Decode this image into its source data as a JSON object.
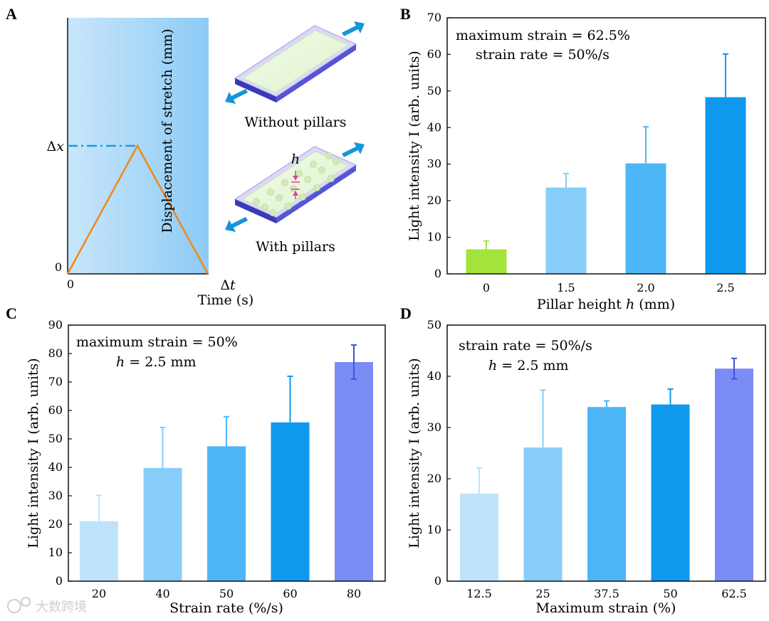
{
  "panels": {
    "a": {
      "letter": "A",
      "ylabel": "Displacement of stretch (mm)",
      "xlabel": "Time (s)",
      "y_zero": "0",
      "x_zero": "0",
      "dx_var": "x",
      "dt_var": "t",
      "h_label": "h",
      "without_label": "Without pillars",
      "with_label": "With pillars"
    }
  },
  "watermark": "大数跨境",
  "chart_data": [
    {
      "id": "B",
      "type": "bar",
      "xlabel_parts": [
        "Pillar height ",
        "h",
        " (mm)"
      ],
      "ylabel": "Light intensity I (arb. units)",
      "ylim": [
        0,
        70
      ],
      "yticks": [
        0,
        10,
        20,
        30,
        40,
        50,
        60,
        70
      ],
      "categories": [
        "0",
        "1.5",
        "2.0",
        "2.5"
      ],
      "values": [
        6.7,
        23.6,
        30.2,
        48.3
      ],
      "errors": [
        2.3,
        3.8,
        10.0,
        11.8
      ],
      "colors": [
        "#a3e33c",
        "#86cdfa",
        "#4db6f6",
        "#0f99ee"
      ],
      "error_colors": [
        "#a3e33c",
        "#86cdfa",
        "#4db6f6",
        "#0f99ee"
      ],
      "annotations": [
        {
          "parts": [
            "maximum strain = 62.5%"
          ]
        },
        {
          "parts": [
            "strain rate = 50%/s"
          ]
        }
      ]
    },
    {
      "id": "C",
      "type": "bar",
      "xlabel_parts": [
        "Strain rate (%/s)"
      ],
      "ylabel": "Light intensity I (arb. units)",
      "ylim": [
        0,
        90
      ],
      "yticks": [
        0,
        10,
        20,
        30,
        40,
        50,
        60,
        70,
        80,
        90
      ],
      "categories": [
        "20",
        "40",
        "50",
        "60",
        "80"
      ],
      "values": [
        21.1,
        39.8,
        47.4,
        55.8,
        77.0
      ],
      "errors": [
        9.1,
        14.2,
        10.4,
        16.2,
        6.0
      ],
      "colors": [
        "#bfe3fb",
        "#86cdfa",
        "#4db6f6",
        "#0f99ee",
        "#7b8cf7"
      ],
      "error_colors": [
        "#bfe3fb",
        "#86cdfa",
        "#4db6f6",
        "#0f99ee",
        "#3f54d8"
      ],
      "annotations": [
        {
          "parts": [
            "maximum strain = 50%"
          ]
        },
        {
          "parts": [
            "h",
            " = 2.5 mm"
          ]
        }
      ]
    },
    {
      "id": "D",
      "type": "bar",
      "xlabel_parts": [
        "Maximum strain (%)"
      ],
      "ylabel": "Light intensity I (arb. units)",
      "ylim": [
        0,
        50
      ],
      "yticks": [
        0,
        10,
        20,
        30,
        40,
        50
      ],
      "categories": [
        "12.5",
        "25",
        "37.5",
        "50",
        "62.5"
      ],
      "values": [
        17.1,
        26.1,
        34.0,
        34.5,
        41.5
      ],
      "errors": [
        5.0,
        11.2,
        1.2,
        3.0,
        2.0
      ],
      "colors": [
        "#bfe3fb",
        "#86cdfa",
        "#4db6f6",
        "#0f99ee",
        "#7b8cf7"
      ],
      "error_colors": [
        "#bfe3fb",
        "#86cdfa",
        "#4db6f6",
        "#0f99ee",
        "#3f54d8"
      ],
      "annotations": [
        {
          "parts": [
            "strain rate = 50%/s"
          ]
        },
        {
          "parts": [
            "h",
            " = 2.5 mm"
          ]
        }
      ]
    }
  ]
}
